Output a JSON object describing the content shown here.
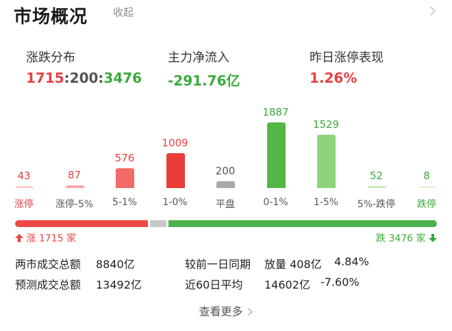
{
  "header": {
    "title": "市场概况",
    "collapse_label": "收起"
  },
  "stats": {
    "distribution": {
      "label": "涨跌分布",
      "up": "1715",
      "sep1": ":",
      "flat": "200",
      "sep2": ":",
      "down": "3476"
    },
    "main_inflow": {
      "label": "主力净流入",
      "value": "-291.76亿"
    },
    "yesterday_limit_up": {
      "label": "昨日涨停表现",
      "value": "1.26%"
    }
  },
  "bars": [
    {
      "count": "43",
      "label": "涨停",
      "value": 43,
      "count_color": "#e94040",
      "bar_color": "#fbd0cf",
      "label_color": "#e94040"
    },
    {
      "count": "87",
      "label": "涨停-5%",
      "value": 87,
      "count_color": "#e94040",
      "bar_color": "#f7a8a6",
      "label_color": "#555555"
    },
    {
      "count": "576",
      "label": "5-1%",
      "value": 576,
      "count_color": "#e94040",
      "bar_color": "#f26b68",
      "label_color": "#555555"
    },
    {
      "count": "1009",
      "label": "1-0%",
      "value": 1009,
      "count_color": "#e94040",
      "bar_color": "#ea3d39",
      "label_color": "#555555"
    },
    {
      "count": "200",
      "label": "平盘",
      "value": 200,
      "count_color": "#555555",
      "bar_color": "#a9a9a9",
      "label_color": "#555555"
    },
    {
      "count": "1887",
      "label": "0-1%",
      "value": 1887,
      "count_color": "#3aab3a",
      "bar_color": "#55b648",
      "label_color": "#555555"
    },
    {
      "count": "1529",
      "label": "1-5%",
      "value": 1529,
      "count_color": "#3aab3a",
      "bar_color": "#8fd47a",
      "label_color": "#555555"
    },
    {
      "count": "52",
      "label": "5%-跌停",
      "value": 52,
      "count_color": "#3aab3a",
      "bar_color": "#c7ebb9",
      "label_color": "#555555"
    },
    {
      "count": "8",
      "label": "跌停",
      "value": 8,
      "count_color": "#3aab3a",
      "bar_color": "#e4f6dc",
      "label_color": "#3aab3a"
    }
  ],
  "distribution_bar": {
    "up": 1715,
    "flat": 200,
    "down": 3476
  },
  "counts": {
    "up_text": "涨 1715 家",
    "down_text": "跌 3476 家"
  },
  "turnover": {
    "total_label": "两市成交总额",
    "total_value": "8840亿",
    "forecast_label": "预测成交总额",
    "forecast_value": "13492亿",
    "compare_label": "较前一日同期",
    "compare_value": "放量 408亿",
    "compare_pct": "4.84%",
    "avg_label": "近60日平均",
    "avg_value": "14602亿",
    "avg_pct": "-7.60%"
  },
  "footer": {
    "more_label": "查看更多"
  },
  "colors": {
    "up": "#e94040",
    "down": "#3aab3a",
    "flat": "#c8c8c8"
  }
}
